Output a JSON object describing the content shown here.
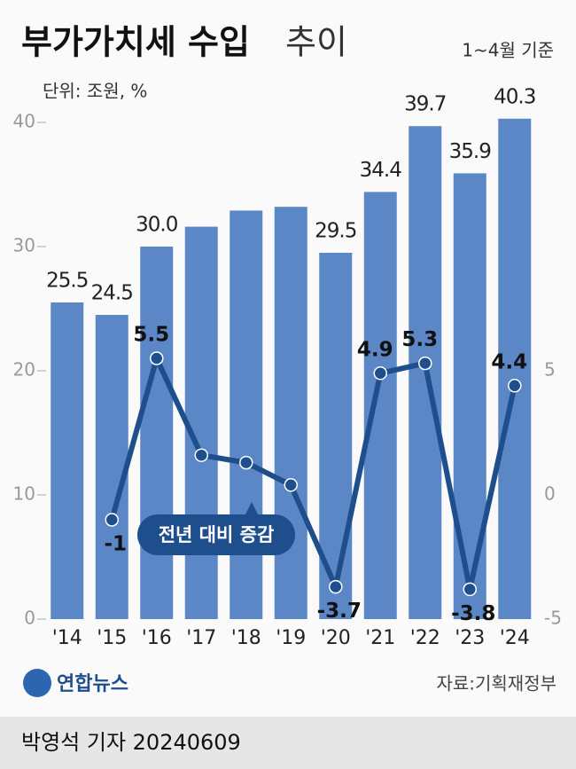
{
  "chart_data": {
    "type": "bar_line",
    "title_parts": [
      "부가가치세 수입",
      "추이"
    ],
    "subtitle": "1~4월 기준",
    "unit_label": "단위: 조원, %",
    "categories": [
      "'14",
      "'15",
      "'16",
      "'17",
      "'18",
      "'19",
      "'20",
      "'21",
      "'22",
      "'23",
      "'24"
    ],
    "series": [
      {
        "name": "부가가치세 수입",
        "type": "bar",
        "color": "#5b87c6",
        "values": [
          25.5,
          24.5,
          30.0,
          31.6,
          32.9,
          33.2,
          29.5,
          34.4,
          39.7,
          35.9,
          40.3
        ],
        "value_labels": [
          "25.5",
          "24.5",
          "30.0",
          null,
          null,
          null,
          "29.5",
          "34.4",
          "39.7",
          "35.9",
          "40.3"
        ]
      },
      {
        "name": "전년 대비 증감",
        "type": "line",
        "axis": "y2",
        "color": "#1f4e8c",
        "values": [
          null,
          -1,
          5.5,
          1.6,
          1.3,
          0.4,
          -3.7,
          4.9,
          5.3,
          -3.8,
          4.4
        ],
        "value_labels": [
          null,
          "-1",
          "5.5",
          null,
          null,
          null,
          "-3.7",
          "4.9",
          "5.3",
          "-3.8",
          "4.4"
        ]
      }
    ],
    "ylim": [
      0,
      40
    ],
    "yticks": [
      0,
      10,
      20,
      30,
      40
    ],
    "y2lim": [
      -5,
      5
    ],
    "y2ticks": [
      -5,
      0,
      5
    ],
    "grid": false,
    "logo": "연합뉴스",
    "source": "자료:기획재정부"
  },
  "footer": "박영석 기자 20240609"
}
